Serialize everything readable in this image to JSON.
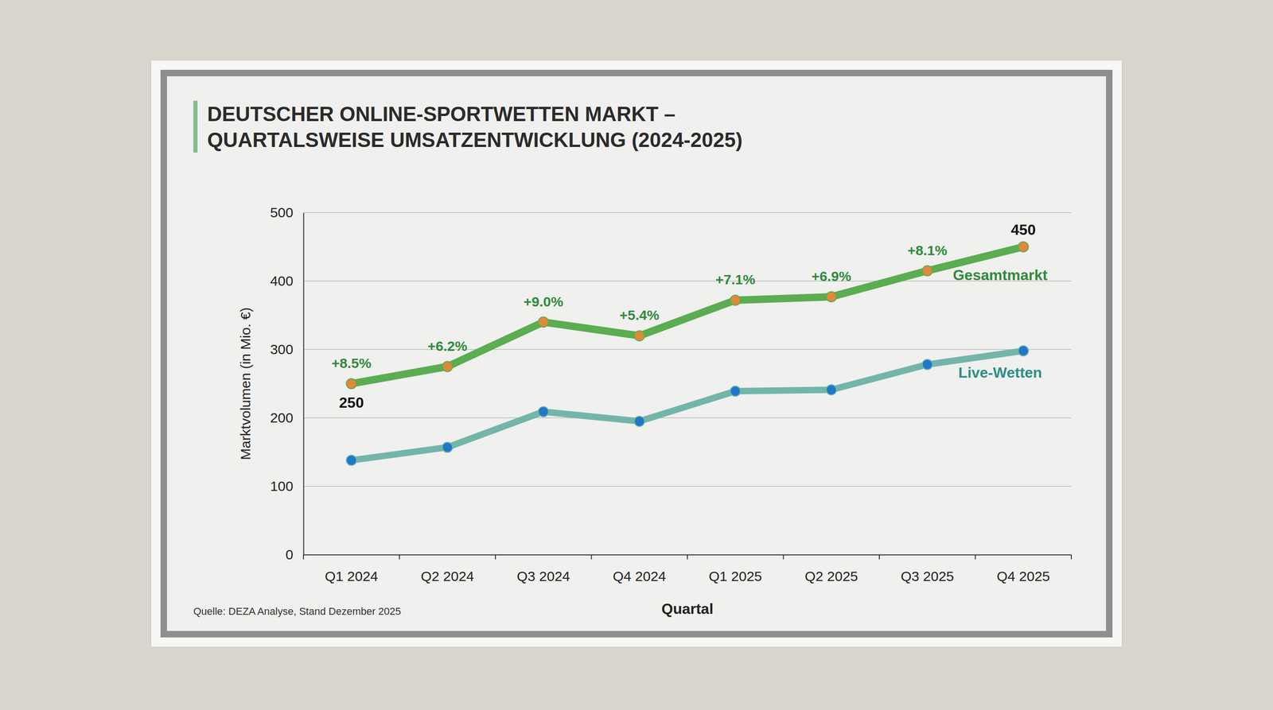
{
  "chart_data": {
    "type": "line",
    "title": [
      "DEUTSCHER ONLINE-SPORTWETTEN MARKT –",
      "QUARTALSWEISE UMSATZENTWICKLUNG (2024-2025)"
    ],
    "x_label": "Quartal",
    "y_label": "Marktvolumen (in Mio. €)",
    "source": "Quelle: DEZA Analyse, Stand Dezember 2025",
    "categories": [
      "Q1 2024",
      "Q2 2024",
      "Q3 2024",
      "Q4 2024",
      "Q1 2025",
      "Q2 2025",
      "Q3 2025",
      "Q4 2025"
    ],
    "series": [
      {
        "name": "Gesamtmarkt",
        "color": "#5aad50",
        "marker": "circle",
        "values": [
          250,
          275,
          340,
          320,
          372,
          377,
          415,
          450
        ],
        "value_labels": [
          "250",
          null,
          null,
          null,
          null,
          null,
          null,
          "450"
        ]
      },
      {
        "name": "Live-Wetten",
        "color": "#73b5aa",
        "marker": "circle",
        "values": [
          138,
          157,
          209,
          195,
          239,
          241,
          278,
          298
        ]
      }
    ],
    "annotations": [
      {
        "series": 0,
        "index": 0,
        "text": "+8.5%"
      },
      {
        "series": 0,
        "index": 1,
        "text": "+6.2%"
      },
      {
        "series": 0,
        "index": 2,
        "text": "+9.0%"
      },
      {
        "series": 0,
        "index": 3,
        "text": "+5.4%"
      },
      {
        "series": 0,
        "index": 4,
        "text": "+7.1%"
      },
      {
        "series": 0,
        "index": 5,
        "text": "+6.9%"
      },
      {
        "series": 0,
        "index": 6,
        "text": "+8.1%"
      }
    ],
    "ylim": [
      0,
      500
    ],
    "yticks": [
      0,
      100,
      200,
      300,
      400,
      500
    ],
    "grid": true
  }
}
